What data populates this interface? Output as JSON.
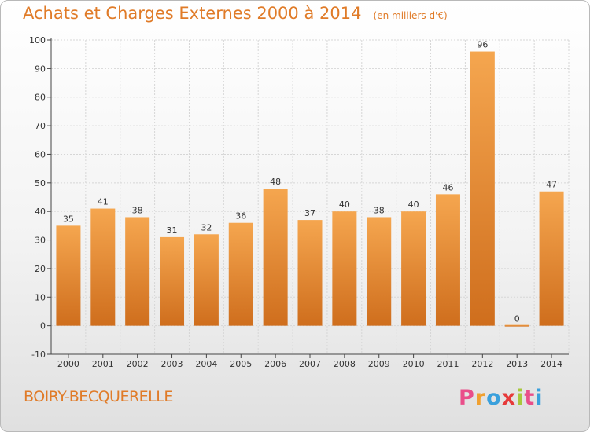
{
  "header": {
    "title": "Achats et Charges Externes 2000 à 2014",
    "subtitle": "(en milliers d'€)"
  },
  "footer": {
    "town": "BOIRY-BECQUERELLE",
    "brand_letters": [
      "P",
      "r",
      "o",
      "x",
      "i",
      "t",
      "i"
    ]
  },
  "colors": {
    "bar_light": "#f5a64f",
    "bar_dark": "#cf6e1d",
    "accent": "#e07b28",
    "axis": "#444444",
    "grid": "#d6d6d6"
  },
  "chart_data": {
    "type": "bar",
    "title": "Achats et Charges Externes 2000 à 2014",
    "subtitle": "(en milliers d'€)",
    "categories": [
      "2000",
      "2001",
      "2002",
      "2003",
      "2004",
      "2005",
      "2006",
      "2007",
      "2008",
      "2009",
      "2010",
      "2011",
      "2012",
      "2013",
      "2014"
    ],
    "values": [
      35,
      41,
      38,
      31,
      32,
      36,
      48,
      37,
      40,
      38,
      40,
      46,
      96,
      0,
      47
    ],
    "ylim": [
      -10,
      100
    ],
    "yticks": [
      -10,
      0,
      10,
      20,
      30,
      40,
      50,
      60,
      70,
      80,
      90,
      100
    ],
    "grid": true,
    "data_labels": true
  }
}
